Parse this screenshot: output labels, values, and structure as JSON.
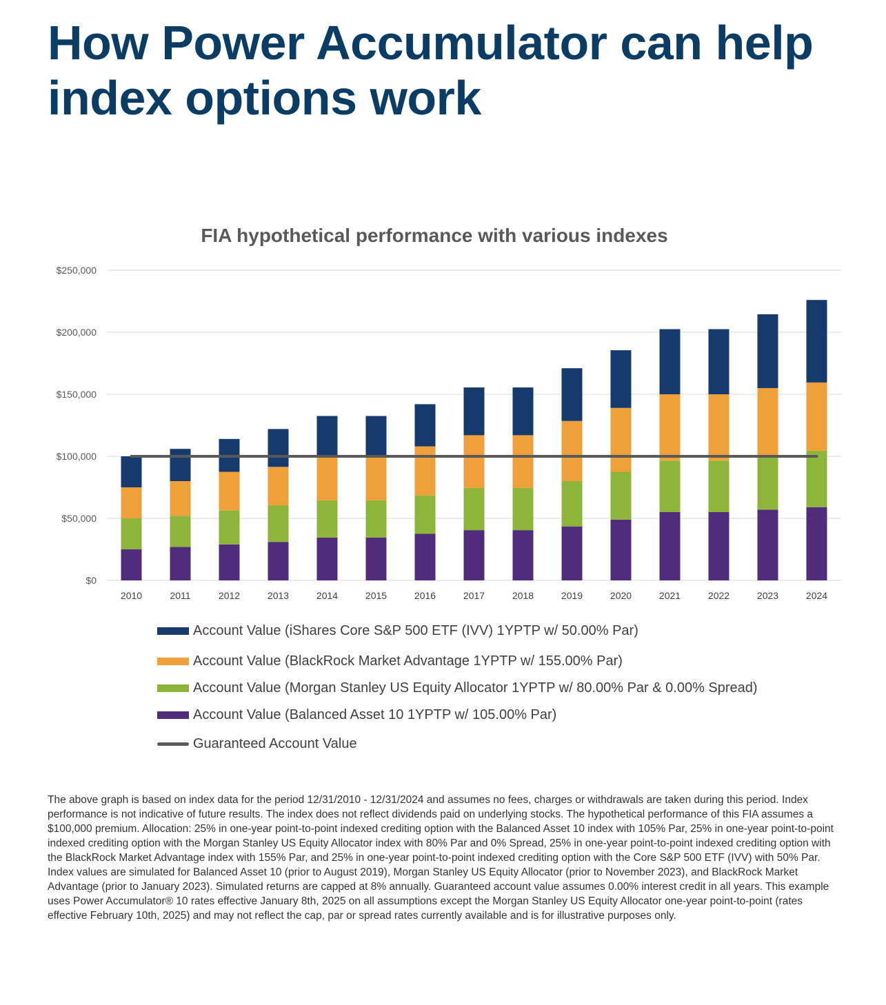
{
  "headline": "How Power Accumulator can help index options work",
  "chart_data": {
    "type": "bar",
    "stacked": true,
    "title": "FIA hypothetical performance with various indexes",
    "categories": [
      "2010",
      "2011",
      "2012",
      "2013",
      "2014",
      "2015",
      "2016",
      "2017",
      "2018",
      "2019",
      "2020",
      "2021",
      "2022",
      "2023",
      "2024"
    ],
    "ylim": [
      0,
      250000
    ],
    "y_ticks": [
      0,
      50000,
      100000,
      150000,
      200000,
      250000
    ],
    "y_tick_labels": [
      "$0",
      "$50,000",
      "$100,000",
      "$150,000",
      "$200,000",
      "$250,000"
    ],
    "grid": true,
    "legend_position": "bottom",
    "series": [
      {
        "name": "Account Value (Balanced Asset 10 1YPTP w/ 105.00% Par)",
        "color": "#512c7c",
        "values": [
          25000,
          27000,
          29000,
          31000,
          34500,
          34500,
          37500,
          40500,
          40500,
          43500,
          49000,
          55000,
          55000,
          57000,
          59000
        ]
      },
      {
        "name": "Account Value (Morgan Stanley US Equity Allocator 1YPTP w/ 80.00% Par & 0.00% Spread)",
        "color": "#8db53a",
        "values": [
          25000,
          25000,
          27500,
          29500,
          30000,
          30000,
          31000,
          34000,
          34000,
          36500,
          38500,
          41500,
          41500,
          42500,
          45500
        ]
      },
      {
        "name": "Account Value (BlackRock Market Advantage 1YPTP  w/ 155.00% Par)",
        "color": "#f0a03a",
        "values": [
          25000,
          28000,
          31000,
          31000,
          35500,
          35500,
          39500,
          42500,
          42500,
          48500,
          51500,
          53500,
          53500,
          55500,
          55000
        ]
      },
      {
        "name": "Account Value (iShares Core S&P 500 ETF (IVV) 1YPTP w/ 50.00% Par)",
        "color": "#163a6b",
        "values": [
          25000,
          26000,
          26500,
          30500,
          32500,
          32500,
          34000,
          38500,
          38500,
          42500,
          46500,
          52500,
          52500,
          59500,
          66500
        ]
      }
    ],
    "line_series": {
      "name": "Guaranteed Account Value",
      "color": "#595959",
      "values": [
        100000,
        100000,
        100000,
        100000,
        100000,
        100000,
        100000,
        100000,
        100000,
        100000,
        100000,
        100000,
        100000,
        100000,
        100000
      ]
    }
  },
  "footnote": "The above graph is based on index data for the period 12/31/2010 - 12/31/2024 and assumes no fees, charges or withdrawals are taken during this period. Index performance is not indicative of future results. The index does not reflect dividends paid on underlying stocks. The hypothetical performance of this FIA assumes a $100,000 premium. Allocation: 25% in one-year point-to-point indexed crediting option with the Balanced Asset 10 index with 105% Par, 25% in one-year point-to-point indexed crediting option with the Morgan Stanley US Equity Allocator index with 80% Par and 0% Spread, 25% in one-year point-to-point indexed crediting option with the BlackRock Market Advantage index with 155% Par, and 25% in one-year point-to-point indexed crediting option with the Core S&P 500 ETF (IVV) with 50% Par. Index values are simulated for Balanced Asset 10 (prior to August 2019), Morgan Stanley US Equity Allocator (prior to November 2023), and BlackRock Market Advantage (prior to January 2023). Simulated returns are capped at 8% annually. Guaranteed account value assumes 0.00% interest credit in all years. This example uses Power Accumulator® 10 rates effective January 8th, 2025 on all assumptions except the Morgan Stanley US Equity Allocator one-year point-to-point (rates effective February 10th, 2025) and may not reflect the cap, par or spread rates currently available and is for illustrative purposes only."
}
